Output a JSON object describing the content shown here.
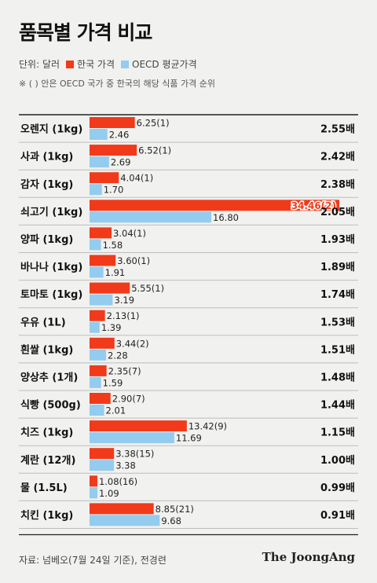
{
  "title": "품목별 가격 비교",
  "legend": {
    "unit": "단위: 달러",
    "korea_label": "한국 가격",
    "oecd_label": "OECD 평균가격"
  },
  "note": "※ ( ) 안은 OECD 국가 중 한국의 해당 식품 가격 순위",
  "source": "자료: 넘베오(7월 24일 기준), 전경련",
  "brand": "The JoongAng",
  "colors": {
    "korea": "#f13a1a",
    "oecd": "#93ccee",
    "highlight_text": "#f13a1a"
  },
  "chart_data": {
    "type": "bar",
    "orientation": "horizontal",
    "categories": [
      "오렌지 (1kg)",
      "사과 (1kg)",
      "감자 (1kg)",
      "쇠고기 (1kg)",
      "양파 (1kg)",
      "바나나 (1kg)",
      "토마토 (1kg)",
      "우유 (1L)",
      "흰쌀 (1kg)",
      "양상추 (1개)",
      "식빵 (500g)",
      "치즈 (1kg)",
      "계란 (12개)",
      "물 (1.5L)",
      "치킨 (1kg)"
    ],
    "series": [
      {
        "name": "한국 가격",
        "values": [
          6.25,
          6.52,
          4.04,
          34.46,
          3.04,
          3.6,
          5.55,
          2.13,
          3.44,
          2.35,
          2.9,
          13.42,
          3.38,
          1.08,
          8.85
        ],
        "labels": [
          "6.25(1)",
          "6.52(1)",
          "4.04(1)",
          "34.46(2)",
          "3.04(1)",
          "3.60(1)",
          "5.55(1)",
          "2.13(1)",
          "3.44(2)",
          "2.35(7)",
          "2.90(7)",
          "13.42(9)",
          "3.38(15)",
          "1.08(16)",
          "8.85(21)"
        ],
        "ranks": [
          1,
          1,
          1,
          2,
          1,
          1,
          1,
          1,
          2,
          7,
          7,
          9,
          15,
          16,
          21
        ]
      },
      {
        "name": "OECD 평균가격",
        "values": [
          2.46,
          2.69,
          1.7,
          16.8,
          1.58,
          1.91,
          3.19,
          1.39,
          2.28,
          1.59,
          2.01,
          11.69,
          3.38,
          1.09,
          9.68
        ],
        "labels": [
          "2.46",
          "2.69",
          "1.70",
          "16.80",
          "1.58",
          "1.91",
          "3.19",
          "1.39",
          "2.28",
          "1.59",
          "2.01",
          "11.69",
          "3.38",
          "1.09",
          "9.68"
        ]
      }
    ],
    "ratios": [
      "2.55배",
      "2.42배",
      "2.38배",
      "2.05배",
      "1.93배",
      "1.89배",
      "1.74배",
      "1.53배",
      "1.51배",
      "1.48배",
      "1.44배",
      "1.15배",
      "1.00배",
      "0.99배",
      "0.91배"
    ],
    "xlim": [
      0,
      34.46
    ],
    "highlight_index": 3,
    "grid": false
  }
}
